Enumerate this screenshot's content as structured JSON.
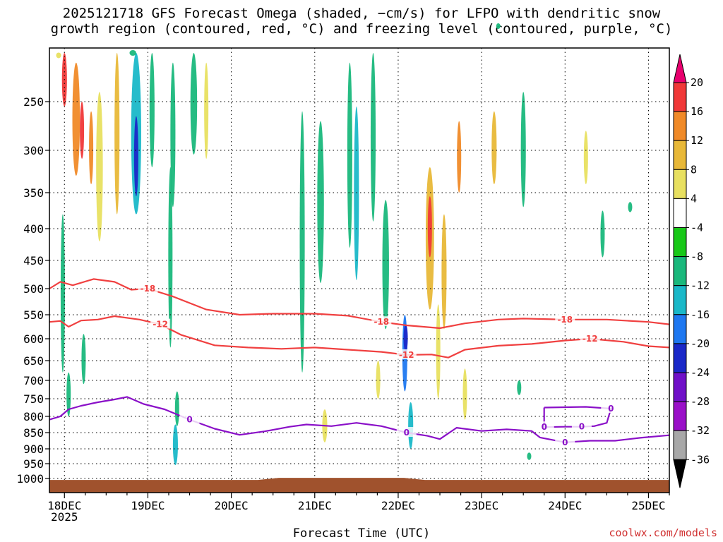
{
  "title": {
    "line1": "2025121718 GFS Forecast Omega (shaded, −cm/s) for LFPO with dendritic snow",
    "line2": "growth region (contoured, red, °C) and freezing level (contoured, purple, °C)"
  },
  "xlabel": "Forecast Time (UTC)",
  "credit": "coolwx.com/models",
  "chart_data": {
    "type": "heatmap",
    "title": "2025121718 GFS Forecast Omega (shaded, −cm/s) for LFPO with dendritic snow growth region (contoured, red, °C) and freezing level (contoured, purple, °C)",
    "xlabel": "Forecast Time (UTC)",
    "ylabel": "",
    "x_ticks": [
      "18DEC",
      "19DEC",
      "20DEC",
      "21DEC",
      "22DEC",
      "23DEC",
      "24DEC",
      "25DEC"
    ],
    "x_subtick_year": "2025",
    "x_range_days": [
      17.82,
      25.25
    ],
    "y_ticks": [
      250,
      300,
      350,
      400,
      450,
      500,
      550,
      600,
      650,
      700,
      750,
      800,
      850,
      900,
      950,
      1000
    ],
    "y_range": [
      200,
      1025
    ],
    "grid": true,
    "colorbar": {
      "levels": [
        20,
        16,
        12,
        8,
        4,
        -4,
        -8,
        -12,
        -16,
        -20,
        -24,
        -28,
        -32,
        -36
      ],
      "colors": [
        "#e8006e",
        "#f03838",
        "#f08a28",
        "#e8b838",
        "#e8e060",
        "#ffffff",
        "#18c818",
        "#1ab87c",
        "#1ab8c8",
        "#1f78f0",
        "#1a28c8",
        "#7010c8",
        "#9a10c8",
        "#a8a8a8",
        "#000000"
      ]
    },
    "omega_regions": [
      {
        "t": 17.93,
        "p": 150,
        "dt": 0.06,
        "dp": 110,
        "v": 6
      },
      {
        "t": 18.0,
        "p": 215,
        "dt": 0.06,
        "dp": 80,
        "v": 18
      },
      {
        "t": 18.14,
        "p": 270,
        "dt": 0.09,
        "dp": 120,
        "v": 12
      },
      {
        "t": 18.21,
        "p": 280,
        "dt": 0.05,
        "dp": 60,
        "v": 16
      },
      {
        "t": 18.32,
        "p": 300,
        "dt": 0.05,
        "dp": 80,
        "v": 14
      },
      {
        "t": 18.42,
        "p": 330,
        "dt": 0.08,
        "dp": 180,
        "v": 6
      },
      {
        "t": 18.63,
        "p": 280,
        "dt": 0.06,
        "dp": 200,
        "v": 8
      },
      {
        "t": 17.98,
        "p": 530,
        "dt": 0.04,
        "dp": 300,
        "v": -10
      },
      {
        "t": 18.05,
        "p": 740,
        "dt": 0.04,
        "dp": 120,
        "v": -8
      },
      {
        "t": 18.23,
        "p": 650,
        "dt": 0.04,
        "dp": 120,
        "v": -8
      },
      {
        "t": 18.86,
        "p": 240,
        "dt": 0.12,
        "dp": 280,
        "v": -14
      },
      {
        "t": 18.86,
        "p": 310,
        "dt": 0.05,
        "dp": 90,
        "v": -20
      },
      {
        "t": 18.82,
        "p": 140,
        "dt": 0.08,
        "dp": 120,
        "v": -8
      },
      {
        "t": 19.05,
        "p": 200,
        "dt": 0.06,
        "dp": 240,
        "v": -8
      },
      {
        "t": 19.3,
        "p": 290,
        "dt": 0.06,
        "dp": 160,
        "v": -10
      },
      {
        "t": 19.27,
        "p": 470,
        "dt": 0.05,
        "dp": 300,
        "v": -8
      },
      {
        "t": 19.33,
        "p": 890,
        "dt": 0.06,
        "dp": 130,
        "v": -14
      },
      {
        "t": 19.35,
        "p": 780,
        "dt": 0.05,
        "dp": 100,
        "v": -10
      },
      {
        "t": 19.55,
        "p": 230,
        "dt": 0.08,
        "dp": 150,
        "v": -8
      },
      {
        "t": 19.7,
        "p": 260,
        "dt": 0.05,
        "dp": 100,
        "v": 6
      },
      {
        "t": 20.85,
        "p": 470,
        "dt": 0.06,
        "dp": 420,
        "v": -8
      },
      {
        "t": 21.07,
        "p": 380,
        "dt": 0.08,
        "dp": 220,
        "v": -10
      },
      {
        "t": 21.12,
        "p": 830,
        "dt": 0.06,
        "dp": 100,
        "v": 6
      },
      {
        "t": 21.42,
        "p": 320,
        "dt": 0.06,
        "dp": 220,
        "v": -8
      },
      {
        "t": 21.5,
        "p": 370,
        "dt": 0.06,
        "dp": 230,
        "v": -12
      },
      {
        "t": 21.7,
        "p": 280,
        "dt": 0.06,
        "dp": 220,
        "v": -8
      },
      {
        "t": 21.85,
        "p": 470,
        "dt": 0.08,
        "dp": 220,
        "v": -8
      },
      {
        "t": 21.76,
        "p": 700,
        "dt": 0.05,
        "dp": 100,
        "v": 6
      },
      {
        "t": 22.08,
        "p": 640,
        "dt": 0.06,
        "dp": 180,
        "v": -16
      },
      {
        "t": 22.09,
        "p": 600,
        "dt": 0.04,
        "dp": 60,
        "v": -22
      },
      {
        "t": 22.15,
        "p": 830,
        "dt": 0.06,
        "dp": 140,
        "v": -12
      },
      {
        "t": 22.38,
        "p": 430,
        "dt": 0.1,
        "dp": 220,
        "v": 10
      },
      {
        "t": 22.38,
        "p": 400,
        "dt": 0.04,
        "dp": 90,
        "v": 18
      },
      {
        "t": 22.55,
        "p": 480,
        "dt": 0.06,
        "dp": 200,
        "v": 8
      },
      {
        "t": 22.48,
        "p": 640,
        "dt": 0.05,
        "dp": 220,
        "v": 4
      },
      {
        "t": 22.73,
        "p": 310,
        "dt": 0.05,
        "dp": 80,
        "v": 12
      },
      {
        "t": 22.8,
        "p": 740,
        "dt": 0.05,
        "dp": 140,
        "v": 6
      },
      {
        "t": 23.15,
        "p": 300,
        "dt": 0.06,
        "dp": 80,
        "v": 8
      },
      {
        "t": 23.2,
        "p": 115,
        "dt": 0.05,
        "dp": 60,
        "v": -8
      },
      {
        "t": 23.5,
        "p": 305,
        "dt": 0.06,
        "dp": 130,
        "v": -10
      },
      {
        "t": 23.45,
        "p": 720,
        "dt": 0.04,
        "dp": 40,
        "v": -8
      },
      {
        "t": 24.25,
        "p": 310,
        "dt": 0.04,
        "dp": 60,
        "v": 6
      },
      {
        "t": 24.45,
        "p": 410,
        "dt": 0.04,
        "dp": 70,
        "v": -8
      },
      {
        "t": 24.78,
        "p": 370,
        "dt": 0.04,
        "dp": 14,
        "v": -8
      },
      {
        "t": 23.57,
        "p": 925,
        "dt": 0.04,
        "dp": 25,
        "v": -8
      }
    ],
    "contours": [
      {
        "label": "-18",
        "color": "#f04040",
        "value": -18,
        "points": [
          [
            17.82,
            500
          ],
          [
            17.95,
            488
          ],
          [
            18.1,
            494
          ],
          [
            18.35,
            483
          ],
          [
            18.6,
            488
          ],
          [
            18.8,
            502
          ],
          [
            19.0,
            500
          ],
          [
            19.3,
            515
          ],
          [
            19.7,
            540
          ],
          [
            20.1,
            550
          ],
          [
            20.5,
            548
          ],
          [
            21.0,
            548
          ],
          [
            21.4,
            552
          ],
          [
            21.8,
            565
          ],
          [
            22.1,
            572
          ],
          [
            22.5,
            578
          ],
          [
            22.8,
            568
          ],
          [
            23.2,
            560
          ],
          [
            23.5,
            558
          ],
          [
            24.0,
            560
          ],
          [
            24.5,
            560
          ],
          [
            25.0,
            565
          ],
          [
            25.25,
            570
          ]
        ]
      },
      {
        "label": "-12",
        "color": "#f04040",
        "value": -12,
        "points": [
          [
            17.82,
            565
          ],
          [
            17.95,
            563
          ],
          [
            18.05,
            575
          ],
          [
            18.2,
            562
          ],
          [
            18.4,
            560
          ],
          [
            18.6,
            553
          ],
          [
            18.9,
            560
          ],
          [
            19.15,
            570
          ],
          [
            19.4,
            592
          ],
          [
            19.8,
            615
          ],
          [
            20.2,
            620
          ],
          [
            20.6,
            623
          ],
          [
            21.0,
            620
          ],
          [
            21.4,
            625
          ],
          [
            21.8,
            630
          ],
          [
            22.1,
            637
          ],
          [
            22.4,
            636
          ],
          [
            22.6,
            643
          ],
          [
            22.8,
            625
          ],
          [
            23.2,
            616
          ],
          [
            23.6,
            612
          ],
          [
            24.0,
            604
          ],
          [
            24.3,
            600
          ],
          [
            24.7,
            607
          ],
          [
            25.0,
            617
          ],
          [
            25.25,
            620
          ]
        ]
      },
      {
        "label": "0",
        "color": "#8a10c8",
        "value": 0,
        "points": [
          [
            17.82,
            810
          ],
          [
            17.95,
            800
          ],
          [
            18.05,
            780
          ],
          [
            18.2,
            770
          ],
          [
            18.4,
            760
          ],
          [
            18.6,
            752
          ],
          [
            18.75,
            745
          ],
          [
            18.95,
            765
          ],
          [
            19.2,
            780
          ],
          [
            19.5,
            810
          ],
          [
            19.8,
            838
          ],
          [
            20.1,
            857
          ],
          [
            20.4,
            846
          ],
          [
            20.7,
            832
          ],
          [
            20.9,
            825
          ],
          [
            21.2,
            830
          ],
          [
            21.5,
            820
          ],
          [
            21.8,
            830
          ],
          [
            22.1,
            850
          ],
          [
            22.35,
            860
          ],
          [
            22.5,
            870
          ],
          [
            22.7,
            835
          ],
          [
            23.0,
            845
          ],
          [
            23.3,
            840
          ],
          [
            23.6,
            845
          ],
          [
            23.7,
            865
          ],
          [
            24.0,
            880
          ],
          [
            24.3,
            875
          ],
          [
            24.6,
            875
          ],
          [
            24.9,
            866
          ],
          [
            25.25,
            858
          ]
        ]
      },
      {
        "label": "0",
        "color": "#8a10c8",
        "value": 0,
        "points": [
          [
            23.75,
            775
          ],
          [
            24.25,
            773
          ],
          [
            24.55,
            778
          ],
          [
            24.5,
            820
          ],
          [
            24.35,
            830
          ],
          [
            24.2,
            832
          ],
          [
            24.0,
            832
          ],
          [
            23.75,
            833
          ],
          [
            23.75,
            775
          ]
        ]
      }
    ],
    "ground": {
      "color": "#a0522d",
      "top_pressure": 1005
    }
  }
}
